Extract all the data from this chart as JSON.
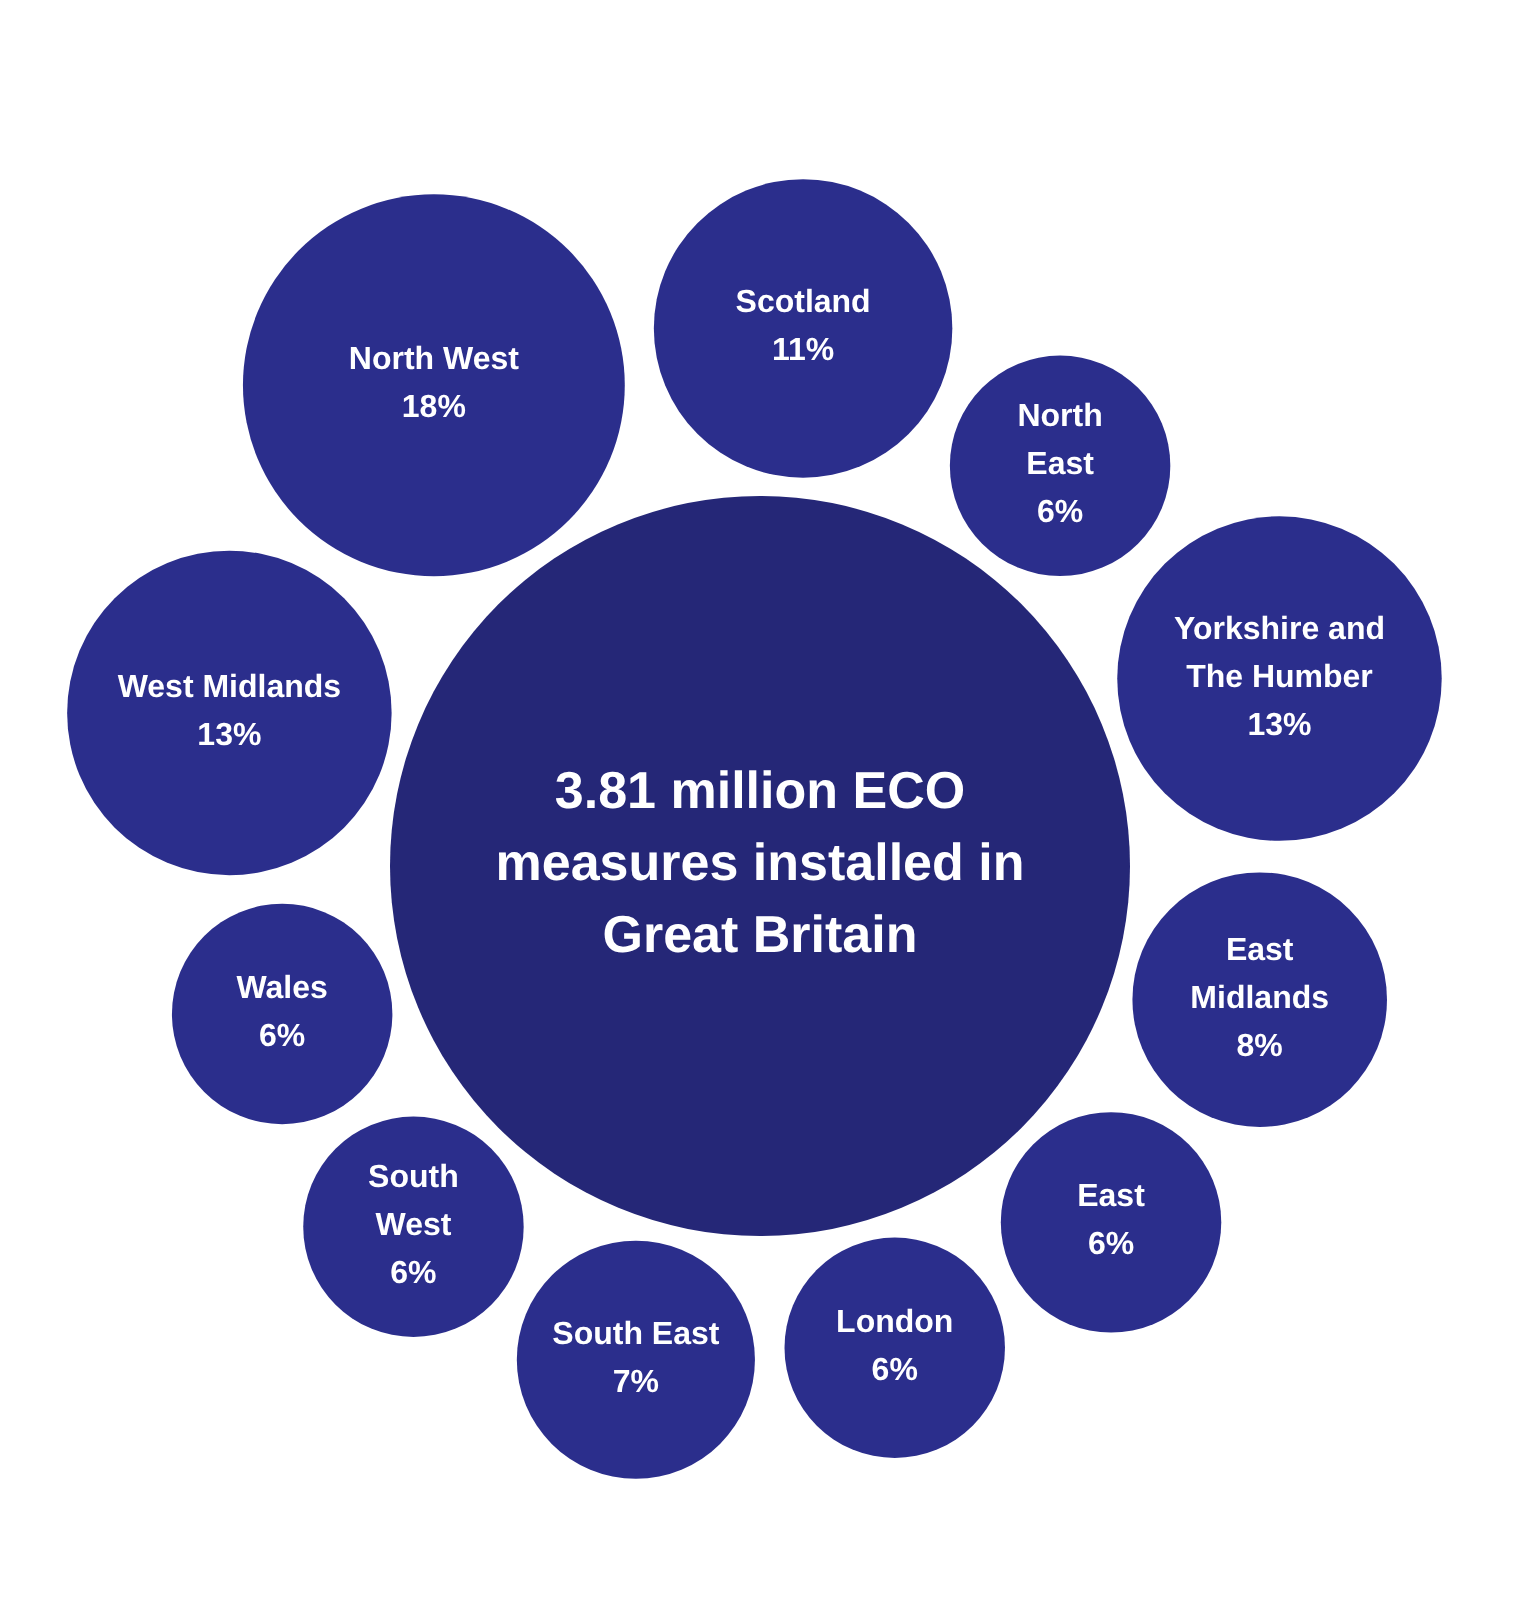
{
  "chart_data": {
    "type": "other",
    "title": "3.81 million ECO measures installed in Great Britain",
    "categories": [
      "Scotland",
      "North East",
      "Yorkshire and The Humber",
      "East Midlands",
      "East",
      "London",
      "South East",
      "South West",
      "Wales",
      "West Midlands",
      "North West"
    ],
    "values": [
      11,
      6,
      13,
      8,
      6,
      6,
      7,
      6,
      6,
      13,
      18
    ],
    "value_labels": [
      "11%",
      "6%",
      "13%",
      "8%",
      "6%",
      "6%",
      "7%",
      "6%",
      "6%",
      "13%",
      "18%"
    ],
    "colors": [
      "#2b2e8c",
      "#2b2e8c",
      "#2b2e8c",
      "#2b2e8c",
      "#2b2e8c",
      "#2b2e8c",
      "#2b2e8c",
      "#2b2e8c",
      "#2b2e8c",
      "#2b2e8c",
      "#2b2e8c"
    ]
  }
}
